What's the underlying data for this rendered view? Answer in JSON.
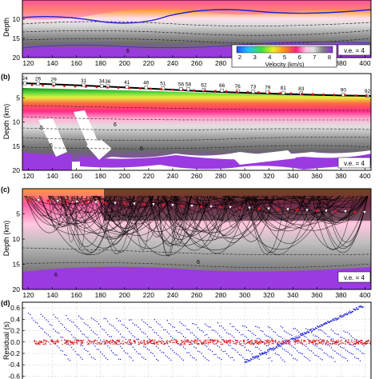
{
  "chart_data": [
    {
      "type": "heatmap",
      "panel_label": "",
      "ylabel": "Depth",
      "ylim": [
        20,
        5
      ],
      "yticks": [
        10,
        15,
        20
      ],
      "xticks": [
        120,
        140,
        160,
        180,
        200,
        220,
        240,
        260,
        280,
        300,
        320,
        340,
        360,
        380,
        400
      ],
      "xlim": [
        115,
        405
      ],
      "colorbar": {
        "label": "Velocity (km/s)",
        "ticks": [
          2,
          3,
          4,
          5,
          6,
          7,
          8
        ]
      },
      "ve_label": "v.e. = 4",
      "contour_labels": [
        "6"
      ]
    },
    {
      "type": "heatmap",
      "panel_label": "(b)",
      "ylabel": "Depth (km)",
      "ylim": [
        20,
        0
      ],
      "yticks": [
        5,
        10,
        15,
        20
      ],
      "xticks": [
        120,
        140,
        160,
        180,
        200,
        220,
        240,
        260,
        280,
        300,
        320,
        340,
        360,
        380,
        400
      ],
      "xlim": [
        115,
        405
      ],
      "ve_label": "v.e. = 4",
      "contour_labels": [
        "5",
        "6",
        "6",
        "6"
      ],
      "stations": [
        {
          "label": "24",
          "x": 117
        },
        {
          "label": "26",
          "x": 128
        },
        {
          "label": "29",
          "x": 141
        },
        {
          "label": "31",
          "x": 166
        },
        {
          "label": "34",
          "x": 181
        },
        {
          "label": "36",
          "x": 186
        },
        {
          "label": "41",
          "x": 202
        },
        {
          "label": "46",
          "x": 218
        },
        {
          "label": "51",
          "x": 232
        },
        {
          "label": "56",
          "x": 247
        },
        {
          "label": "58",
          "x": 253
        },
        {
          "label": "62",
          "x": 266
        },
        {
          "label": "66",
          "x": 281
        },
        {
          "label": "73",
          "x": 307
        },
        {
          "label": "76",
          "x": 294
        },
        {
          "label": "79",
          "x": 319
        },
        {
          "label": "81",
          "x": 332
        },
        {
          "label": "83",
          "x": 347
        },
        {
          "label": "90",
          "x": 382
        },
        {
          "label": "92",
          "x": 402
        }
      ]
    },
    {
      "type": "heatmap",
      "panel_label": "(c)",
      "ylabel": "Depth (km)",
      "ylim": [
        20,
        0
      ],
      "yticks": [
        5,
        10,
        15,
        20
      ],
      "xticks": [
        120,
        140,
        160,
        180,
        200,
        220,
        240,
        260,
        280,
        300,
        320,
        340,
        360,
        380,
        400
      ],
      "xlim": [
        115,
        405
      ],
      "ve_label": "v.e. = 4",
      "contour_labels": [
        "6",
        "6"
      ]
    },
    {
      "type": "scatter",
      "panel_label": "(d)",
      "ylabel": "Residual (s)",
      "ylim": [
        -0.65,
        0.7
      ],
      "yticks": [
        0.6,
        0.4,
        0.2,
        0.0,
        -0.2,
        -0.4,
        -0.6
      ],
      "ytick_labels": [
        "0.6",
        "0.4",
        "0.2",
        "0.0",
        "-0.2",
        "-0.4",
        "-0.6"
      ],
      "xlim": [
        115,
        405
      ],
      "series": [
        {
          "color": "#1a1adc"
        },
        {
          "color": "#e02020"
        }
      ]
    }
  ],
  "colors": {
    "black_band": "#000000",
    "purple": "#8a2be2",
    "green": "#40c040",
    "red_marker": "#e01818",
    "white_marker": "#ffffff",
    "blue_residual": "#1a1adc",
    "red_residual": "#e02020"
  }
}
